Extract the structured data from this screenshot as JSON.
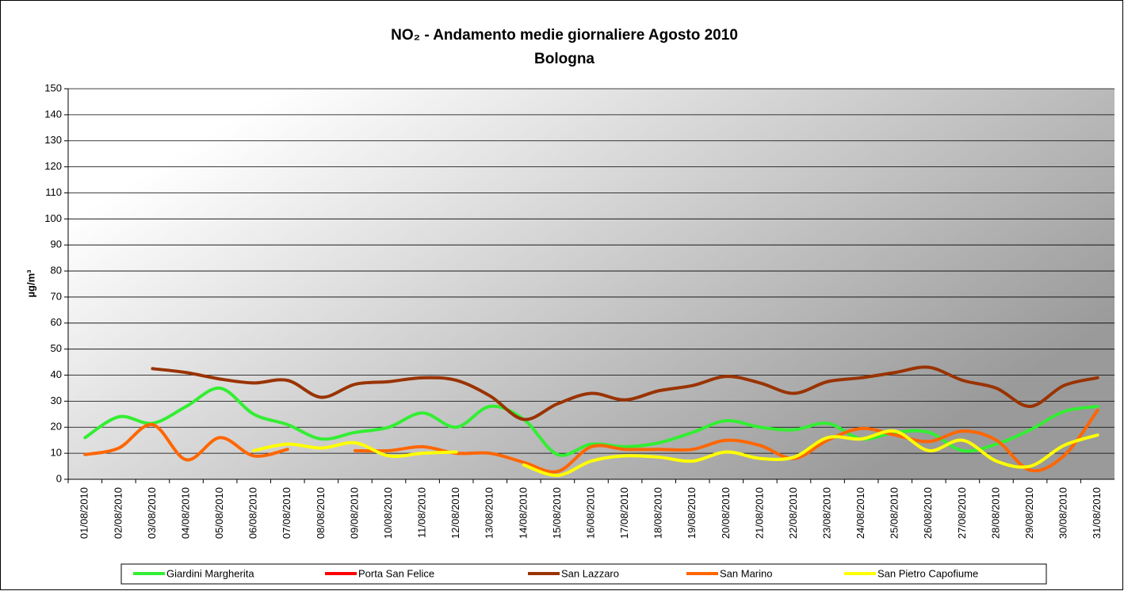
{
  "chart_data": {
    "type": "line",
    "title": "NO₂ - Andamento medie giornaliere Agosto 2010",
    "subtitle": "Bologna",
    "y_label": "µg/m³",
    "categories": [
      "01/08/2010",
      "02/08/2010",
      "03/08/2010",
      "04/08/2010",
      "05/08/2010",
      "06/08/2010",
      "07/08/2010",
      "08/08/2010",
      "09/08/2010",
      "10/08/2010",
      "11/08/2010",
      "12/08/2010",
      "13/08/2010",
      "14/08/2010",
      "15/08/2010",
      "16/08/2010",
      "17/08/2010",
      "18/08/2010",
      "19/08/2010",
      "20/08/2010",
      "21/08/2010",
      "22/08/2010",
      "23/08/2010",
      "24/08/2010",
      "25/08/2010",
      "26/08/2010",
      "27/08/2010",
      "28/08/2010",
      "29/08/2010",
      "30/08/2010",
      "31/08/2010"
    ],
    "series": [
      {
        "name": "Giardini Margherita",
        "color": "#33ee33",
        "values": [
          16,
          24,
          21.5,
          28,
          35,
          25,
          21,
          15.5,
          18,
          20,
          25.5,
          20,
          28,
          23,
          9.5,
          13.5,
          12.5,
          14,
          18,
          22.5,
          20,
          19,
          21.5,
          15.5,
          18,
          18,
          11,
          13.5,
          19,
          26,
          28
        ]
      },
      {
        "name": "Porta San Felice",
        "color": "#ff0000",
        "values": [
          null,
          null,
          null,
          null,
          null,
          null,
          null,
          null,
          null,
          null,
          null,
          null,
          null,
          null,
          null,
          null,
          null,
          null,
          null,
          null,
          null,
          null,
          null,
          null,
          null,
          null,
          null,
          null,
          null,
          null,
          null
        ]
      },
      {
        "name": "San Lazzaro",
        "color": "#993300",
        "values": [
          null,
          null,
          42.5,
          41,
          38.5,
          37,
          38,
          31.5,
          36.5,
          37.5,
          39,
          38,
          32,
          23,
          29,
          33,
          30.5,
          34,
          36,
          39.5,
          37,
          33,
          37.5,
          39,
          41,
          43,
          38,
          35,
          28,
          36,
          39
        ]
      },
      {
        "name": "San Marino",
        "color": "#ff6600",
        "values": [
          9.5,
          12,
          21,
          7.5,
          16,
          9,
          11.5,
          null,
          11,
          11,
          12.5,
          10,
          10,
          6.5,
          3,
          12.5,
          11.5,
          11.5,
          11.5,
          15,
          13,
          8,
          15,
          19.5,
          17,
          14.5,
          18.5,
          15,
          3.5,
          9,
          26.5
        ]
      },
      {
        "name": "San Pietro Capofiume",
        "color": "#ffff00",
        "values": [
          null,
          null,
          null,
          null,
          null,
          11,
          13.5,
          12,
          14,
          9,
          10,
          10.5,
          null,
          5.5,
          1.5,
          7,
          9,
          8.5,
          7,
          10.5,
          8,
          8.5,
          16,
          15.5,
          18.5,
          11,
          15,
          7,
          5,
          13,
          17
        ]
      }
    ],
    "ylim": [
      0,
      150
    ],
    "yticks": [
      0,
      10,
      20,
      30,
      40,
      50,
      60,
      70,
      80,
      90,
      100,
      110,
      120,
      130,
      140,
      150
    ],
    "grid": true
  }
}
